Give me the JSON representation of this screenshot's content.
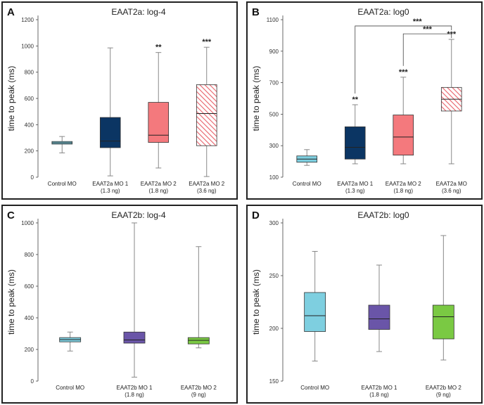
{
  "chart_data": [
    {
      "panel": "A",
      "type": "box",
      "title": "EAAT2a: log-4",
      "ylabel": "time to peak (ms)",
      "ylim": [
        0,
        1200
      ],
      "yticks": [
        0,
        200,
        400,
        600,
        800,
        1000,
        1200
      ],
      "categories": [
        {
          "line1": "Control MO",
          "line2": "",
          "min": 185,
          "q1": 252,
          "median": 262,
          "q3": 272,
          "max": 310,
          "color": "#7ecfe0",
          "hatch": false,
          "sig": ""
        },
        {
          "line1": "EAAT2a MO 1",
          "line2": "(1.3 ng)",
          "min": 10,
          "q1": 225,
          "median": 275,
          "q3": 455,
          "max": 985,
          "color": "#0b3563",
          "hatch": false,
          "sig": ""
        },
        {
          "line1": "EAAT2a MO 2",
          "line2": "(1.8 ng)",
          "min": 70,
          "q1": 265,
          "median": 320,
          "q3": 570,
          "max": 950,
          "color": "#f4797d",
          "hatch": false,
          "sig": "**"
        },
        {
          "line1": "EAAT2a MO 2",
          "line2": "(3.6 ng)",
          "min": 5,
          "q1": 240,
          "median": 485,
          "q3": 705,
          "max": 990,
          "color": "#e8626a",
          "hatch": true,
          "sig": "***"
        }
      ],
      "brackets": []
    },
    {
      "panel": "B",
      "type": "box",
      "title": "EAAT2a: log0",
      "ylabel": "time to peak (ms)",
      "ylim": [
        100,
        1100
      ],
      "yticks": [
        100,
        300,
        500,
        700,
        900,
        1100
      ],
      "categories": [
        {
          "line1": "Control MO",
          "line2": "",
          "min": 175,
          "q1": 195,
          "median": 215,
          "q3": 235,
          "max": 275,
          "color": "#7ecfe0",
          "hatch": false,
          "sig": ""
        },
        {
          "line1": "EAAT2a MO 1",
          "line2": "(1.3 ng)",
          "min": 185,
          "q1": 215,
          "median": 290,
          "q3": 420,
          "max": 560,
          "color": "#0b3563",
          "hatch": false,
          "sig": "**"
        },
        {
          "line1": "EAAT2a MO 2",
          "line2": "(1.8 ng)",
          "min": 185,
          "q1": 240,
          "median": 355,
          "q3": 495,
          "max": 735,
          "color": "#f4797d",
          "hatch": false,
          "sig": "***"
        },
        {
          "line1": "EAAT2a MO",
          "line2": "(3.6 ng)",
          "min": 185,
          "q1": 520,
          "median": 595,
          "q3": 670,
          "max": 975,
          "color": "#e8626a",
          "hatch": true,
          "sig": "***"
        }
      ],
      "brackets": [
        {
          "from": 1,
          "to": 3,
          "y": 1060,
          "label": "***"
        },
        {
          "from": 2,
          "to": 3,
          "y": 1010,
          "label": "***"
        }
      ]
    },
    {
      "panel": "C",
      "type": "box",
      "title": "EAAT2b: log-4",
      "ylabel": "time to peak (ms)",
      "ylim": [
        0,
        1000
      ],
      "yticks": [
        0,
        200,
        400,
        600,
        800,
        1000
      ],
      "categories": [
        {
          "line1": "Control MO",
          "line2": "",
          "min": 190,
          "q1": 248,
          "median": 262,
          "q3": 275,
          "max": 310,
          "color": "#7ecfe0",
          "hatch": false,
          "sig": ""
        },
        {
          "line1": "EAAT2b MO 1",
          "line2": "(1.8 ng)",
          "min": 25,
          "q1": 240,
          "median": 260,
          "q3": 310,
          "max": 1000,
          "color": "#6a55a8",
          "hatch": false,
          "sig": ""
        },
        {
          "line1": "EAAT2b MO 2",
          "line2": "(9 ng)",
          "min": 210,
          "q1": 235,
          "median": 258,
          "q3": 275,
          "max": 850,
          "color": "#7ac943",
          "hatch": false,
          "sig": ""
        }
      ],
      "brackets": []
    },
    {
      "panel": "D",
      "type": "box",
      "title": "EAAT2b: log0",
      "ylabel": "time to peak (ms)",
      "ylim": [
        150,
        300
      ],
      "yticks": [
        150,
        200,
        250,
        300
      ],
      "categories": [
        {
          "line1": "Control MO",
          "line2": "",
          "min": 169,
          "q1": 197,
          "median": 212,
          "q3": 234,
          "max": 273,
          "color": "#7ecfe0",
          "hatch": false,
          "sig": ""
        },
        {
          "line1": "EAAT2b MO 1",
          "line2": "(1.8 ng)",
          "min": 178,
          "q1": 199,
          "median": 209,
          "q3": 222,
          "max": 260,
          "color": "#6a55a8",
          "hatch": false,
          "sig": ""
        },
        {
          "line1": "EAAT2b MO 2",
          "line2": "(9 ng)",
          "min": 170,
          "q1": 190,
          "median": 211,
          "q3": 222,
          "max": 288,
          "color": "#7ac943",
          "hatch": false,
          "sig": ""
        }
      ],
      "brackets": []
    }
  ]
}
